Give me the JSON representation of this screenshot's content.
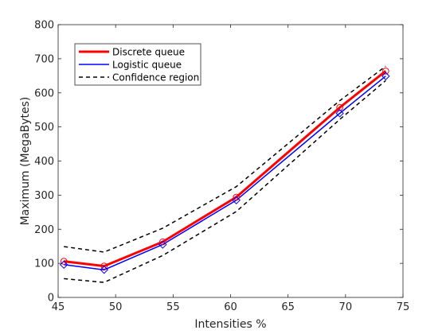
{
  "chart_data": {
    "type": "line",
    "xlabel": "Intensities %",
    "ylabel": "Maximum (MegaBytes)",
    "xlim": [
      45,
      75
    ],
    "ylim": [
      0,
      800
    ],
    "xticks": [
      "45",
      "50",
      "55",
      "60",
      "65",
      "70",
      "75"
    ],
    "yticks": [
      "0",
      "100",
      "200",
      "300",
      "400",
      "500",
      "600",
      "700",
      "800"
    ],
    "grid": false,
    "legend_position": "top-left",
    "x": [
      45.5,
      49,
      54.1,
      60.5,
      69.5,
      73.5
    ],
    "series": [
      {
        "name": "Discrete queue",
        "values": [
          106,
          92,
          163,
          294,
          557,
          664
        ],
        "color": "#ff0000",
        "style": "solid-thick",
        "marker": "circle"
      },
      {
        "name": "Logistic queue",
        "values": [
          96,
          81,
          155,
          285,
          540,
          649
        ],
        "color": "#0000ff",
        "style": "solid",
        "marker": "diamond"
      },
      {
        "name": "Confidence region",
        "upper": [
          149,
          133,
          203,
          325,
          577,
          678
        ],
        "lower": [
          55,
          44,
          123,
          252,
          522,
          636
        ],
        "color": "#000000",
        "style": "dashed"
      }
    ]
  }
}
